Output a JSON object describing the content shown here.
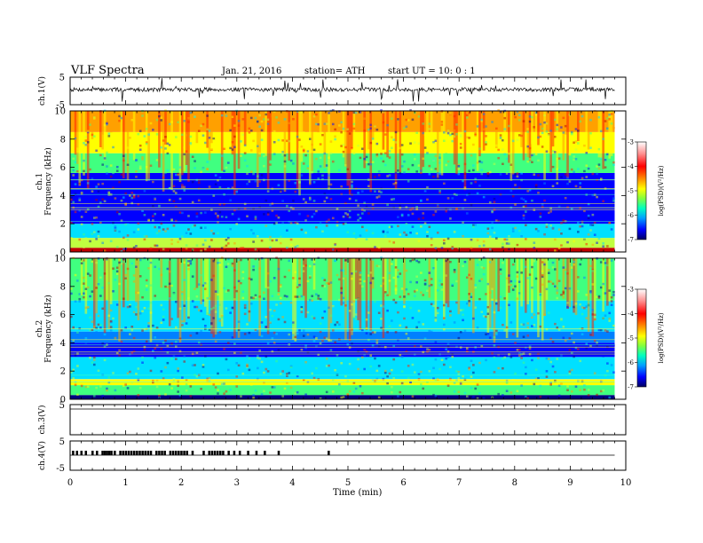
{
  "header": {
    "title": "VLF  Spectra",
    "date": "Jan. 21, 2016",
    "station": "station= ATH",
    "start": "start  UT  =    10: 0  : 1"
  },
  "chart_data": [
    {
      "type": "line",
      "panel": "ch1-waveform",
      "ylabel": "ch.1(V)",
      "ylim": [
        -5,
        5
      ],
      "yticks": [
        "5",
        "-5"
      ],
      "xlim": [
        0,
        9.8
      ],
      "baseline": 0
    },
    {
      "type": "heatmap",
      "panel": "ch1-spectrogram",
      "ylabel_channel": "ch.1",
      "ylabel": "Frequency  (kHz)",
      "ylim": [
        0,
        10
      ],
      "yticks": [
        "0",
        "2",
        "4",
        "6",
        "8",
        "10"
      ],
      "xlim": [
        0,
        9.8
      ],
      "zlabel": "log(PSD)(V²/Hz)",
      "zlim": [
        -7,
        -3
      ],
      "zticks": [
        "-3",
        "-4",
        "-5",
        "-6",
        "-7"
      ],
      "bands": [
        {
          "f": [
            0,
            0.3
          ],
          "level": -3.0
        },
        {
          "f": [
            0.3,
            1.0
          ],
          "level": -4.7
        },
        {
          "f": [
            1.0,
            2.0
          ],
          "level": -5.6
        },
        {
          "f": [
            2.0,
            5.6
          ],
          "level": -6.6
        },
        {
          "f": [
            5.6,
            7.0
          ],
          "level": -5.2
        },
        {
          "f": [
            7.0,
            8.5
          ],
          "level": -4.6
        },
        {
          "f": [
            8.5,
            10.0
          ],
          "level": -4.1
        }
      ]
    },
    {
      "type": "heatmap",
      "panel": "ch2-spectrogram",
      "ylabel_channel": "ch.2",
      "ylabel": "Frequency  (kHz)",
      "ylim": [
        0,
        10
      ],
      "yticks": [
        "0",
        "2",
        "4",
        "6",
        "8",
        "10"
      ],
      "xlim": [
        0,
        9.8
      ],
      "zlabel": "log(PSD)(V²/Hz)",
      "zlim": [
        -7,
        -3
      ],
      "zticks": [
        "-3",
        "-4",
        "-5",
        "-6",
        "-7"
      ],
      "bands": [
        {
          "f": [
            0,
            0.3
          ],
          "level": -7.0
        },
        {
          "f": [
            0.3,
            1.0
          ],
          "level": -5.3
        },
        {
          "f": [
            1.0,
            1.4
          ],
          "level": -4.5
        },
        {
          "f": [
            1.4,
            3.0
          ],
          "level": -5.5
        },
        {
          "f": [
            3.0,
            4.0
          ],
          "level": -6.5
        },
        {
          "f": [
            4.0,
            4.8
          ],
          "level": -6.1
        },
        {
          "f": [
            4.8,
            7.0
          ],
          "level": -5.5
        },
        {
          "f": [
            7.0,
            10.0
          ],
          "level": -5.2
        }
      ]
    },
    {
      "type": "line",
      "panel": "ch3-waveform",
      "ylabel": "ch.3(V)",
      "ylim": [
        -5,
        5
      ],
      "yticks": [
        "5"
      ],
      "xlim": [
        0,
        9.8
      ]
    },
    {
      "type": "line",
      "panel": "ch4-waveform",
      "ylabel": "ch.4(V)",
      "ylim": [
        -5,
        5
      ],
      "yticks": [
        "5",
        "-5"
      ],
      "xlim": [
        0,
        9.8
      ],
      "pulse_times": [
        0.05,
        0.12,
        0.2,
        0.28,
        0.4,
        0.48,
        0.58,
        0.62,
        0.66,
        0.7,
        0.74,
        0.8,
        0.9,
        0.95,
        1.0,
        1.05,
        1.1,
        1.15,
        1.2,
        1.25,
        1.3,
        1.35,
        1.4,
        1.45,
        1.55,
        1.6,
        1.65,
        1.7,
        1.8,
        1.85,
        1.9,
        1.95,
        2.0,
        2.05,
        2.1,
        2.2,
        2.4,
        2.5,
        2.55,
        2.6,
        2.65,
        2.7,
        2.75,
        2.85,
        2.95,
        3.05,
        3.2,
        3.35,
        3.5,
        3.75,
        4.65
      ]
    }
  ],
  "xaxis": {
    "label": "Time  (min)",
    "ticks": [
      "0",
      "1",
      "2",
      "3",
      "4",
      "5",
      "6",
      "7",
      "8",
      "9",
      "10"
    ],
    "xlim": [
      0,
      10
    ]
  },
  "colors": {
    "jet": [
      "#000080",
      "#0000ff",
      "#0080ff",
      "#00e0ff",
      "#40ff80",
      "#c0ff40",
      "#ffff00",
      "#ffa000",
      "#ff2000",
      "#c00000"
    ],
    "colorbar_top": [
      "#ff9090",
      "#ffffff"
    ]
  }
}
